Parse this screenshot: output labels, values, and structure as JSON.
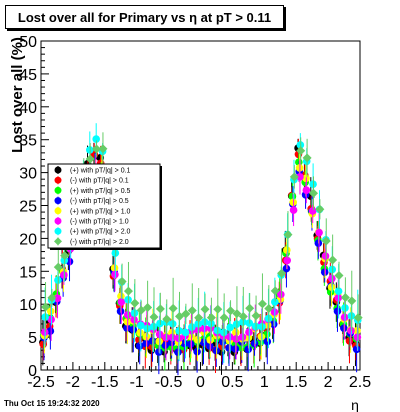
{
  "header": {
    "title": "Lost over all for Primary vs  η at pT > 0.11"
  },
  "footer": {
    "timestamp": "Thu Oct 15 19:24:32 2020"
  },
  "chart_data": {
    "type": "scatter",
    "title": "Lost over all for Primary vs  η at pT > 0.11",
    "xlabel": "η",
    "ylabel": "Lost over all (%)",
    "xlim": [
      -2.5,
      2.5
    ],
    "ylim": [
      0,
      50
    ],
    "x_ticks": [
      "-2.5",
      "-2",
      "-1.5",
      "-1",
      "-0.5",
      "0",
      "0.5",
      "1",
      "1.5",
      "2",
      "2.5"
    ],
    "y_ticks": [
      "0",
      "5",
      "10",
      "15",
      "20",
      "25",
      "30",
      "35",
      "40",
      "45",
      "50"
    ],
    "grid": false,
    "legend_position": "left-middle",
    "series": [
      {
        "name": "(+) with pT/|q| > 0.1",
        "color": "#000000",
        "marker": "circle",
        "base": 3.5,
        "peak": 33
      },
      {
        "name": "(-) with pT/|q| > 0.1",
        "color": "#ff0000",
        "marker": "circle",
        "base": 3.8,
        "peak": 32
      },
      {
        "name": "(+) with pT/|q| > 0.5",
        "color": "#00ff00",
        "marker": "circle",
        "base": 4.0,
        "peak": 31
      },
      {
        "name": "(-) with pT/|q| > 0.5",
        "color": "#0000ff",
        "marker": "circle",
        "base": 3.5,
        "peak": 30
      },
      {
        "name": "(+) with pT/|q| > 1.0",
        "color": "#ffff00",
        "marker": "circle",
        "base": 5.0,
        "peak": 31
      },
      {
        "name": "(-) with pT/|q| > 1.0",
        "color": "#ff00ff",
        "marker": "circle",
        "base": 5.5,
        "peak": 30
      },
      {
        "name": "(+) with pT/|q| > 2.0",
        "color": "#00ffff",
        "marker": "circle",
        "base": 6.5,
        "peak": 35
      },
      {
        "name": "(-) with pT/|q| > 2.0",
        "color": "#66cc66",
        "marker": "diamond",
        "base": 8.5,
        "peak": 34
      }
    ],
    "profile": {
      "x": [
        -2.45,
        -2.35,
        -2.25,
        -2.15,
        -2.05,
        -1.95,
        -1.85,
        -1.75,
        -1.65,
        -1.55,
        -1.45,
        -1.35,
        -1.25,
        -1.15,
        -1.05,
        -0.95,
        -0.85,
        -0.75,
        -0.65,
        -0.55,
        -0.45,
        -0.35,
        -0.25,
        -0.15,
        -0.05,
        0.05,
        0.15,
        0.25,
        0.35,
        0.45,
        0.55,
        0.65,
        0.75,
        0.85,
        0.95,
        1.05,
        1.15,
        1.25,
        1.35,
        1.45,
        1.55,
        1.65,
        1.75,
        1.85,
        1.95,
        2.05,
        2.15,
        2.25,
        2.35,
        2.45
      ],
      "shape": [
        0.03,
        0.12,
        0.25,
        0.38,
        0.52,
        0.66,
        0.8,
        0.92,
        1.0,
        0.96,
        0.7,
        0.4,
        0.22,
        0.12,
        0.07,
        0.03,
        0.02,
        0.01,
        0.0,
        0.0,
        0.01,
        0.0,
        0.0,
        0.01,
        0.0,
        0.0,
        0.01,
        0.0,
        0.0,
        0.01,
        0.0,
        0.0,
        0.01,
        0.02,
        0.03,
        0.06,
        0.12,
        0.25,
        0.48,
        0.8,
        1.0,
        0.9,
        0.75,
        0.6,
        0.45,
        0.32,
        0.22,
        0.12,
        0.05,
        0.01
      ]
    }
  }
}
